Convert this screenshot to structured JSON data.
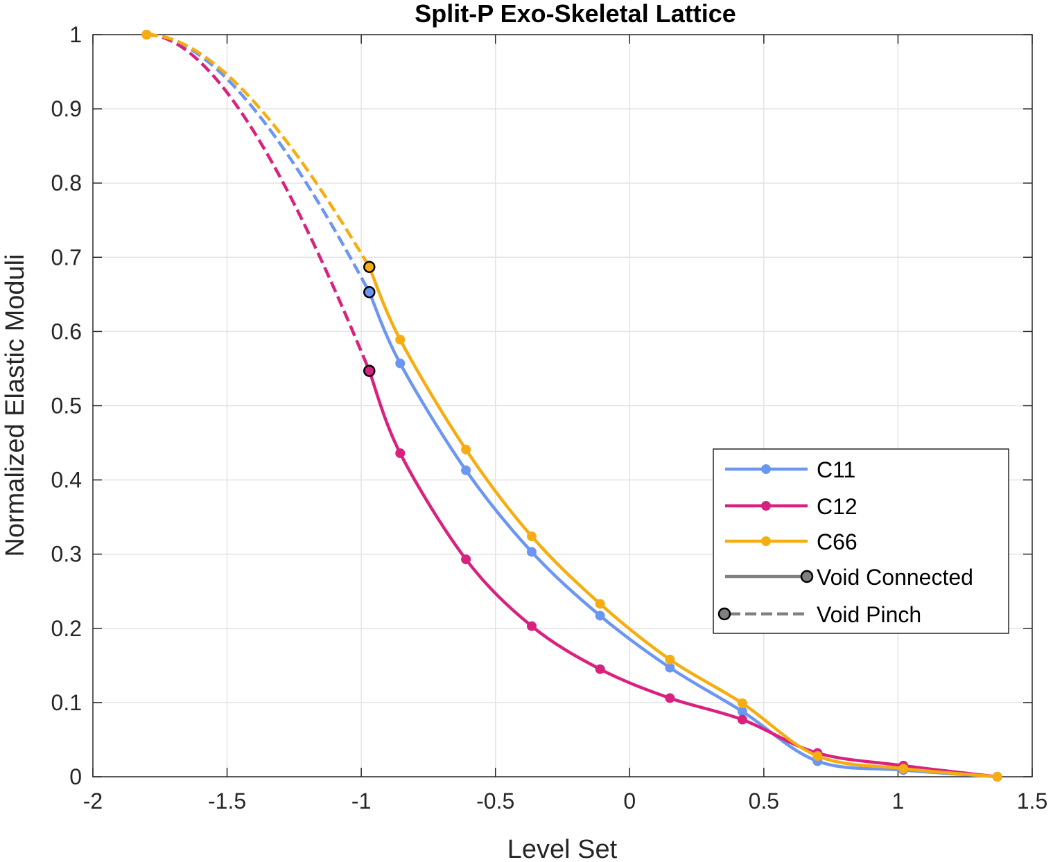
{
  "chart_data": {
    "type": "line",
    "title": "Split-P Exo-Skeletal Lattice",
    "xlabel": "Level Set",
    "ylabel": "Normalized Elastic Moduli",
    "xlim": [
      -2,
      1.5
    ],
    "ylim": [
      0,
      1
    ],
    "xticks": [
      -2,
      -1.5,
      -1,
      -0.5,
      0,
      0.5,
      1,
      1.5
    ],
    "xtick_labels": [
      "-2",
      "-1.5",
      "-1",
      "-0.5",
      "0",
      "0.5",
      "1",
      "1.5"
    ],
    "yticks": [
      0,
      0.1,
      0.2,
      0.3,
      0.4,
      0.5,
      0.6,
      0.7,
      0.8,
      0.9,
      1
    ],
    "ytick_labels": [
      "0",
      "0.1",
      "0.2",
      "0.3",
      "0.4",
      "0.5",
      "0.6",
      "0.7",
      "0.8",
      "0.9",
      "1"
    ],
    "grid": true,
    "legend_position": "right",
    "series": [
      {
        "name": "C11",
        "color": "#6b96f2",
        "pinch": [
          [
            -1.8,
            1.0
          ],
          [
            -0.97,
            0.653
          ]
        ],
        "connected": [
          [
            -0.97,
            0.653
          ],
          [
            -0.855,
            0.557
          ],
          [
            -0.61,
            0.413
          ],
          [
            -0.365,
            0.303
          ],
          [
            -0.11,
            0.217
          ],
          [
            0.15,
            0.147
          ],
          [
            0.42,
            0.088
          ],
          [
            0.7,
            0.021
          ],
          [
            1.02,
            0.009
          ],
          [
            1.37,
            0.0
          ]
        ]
      },
      {
        "name": "C12",
        "color": "#d9217f",
        "pinch": [
          [
            -1.8,
            1.0
          ],
          [
            -0.97,
            0.547
          ]
        ],
        "connected": [
          [
            -0.97,
            0.547
          ],
          [
            -0.855,
            0.436
          ],
          [
            -0.61,
            0.293
          ],
          [
            -0.365,
            0.203
          ],
          [
            -0.11,
            0.145
          ],
          [
            0.15,
            0.106
          ],
          [
            0.42,
            0.077
          ],
          [
            0.7,
            0.032
          ],
          [
            1.02,
            0.015
          ],
          [
            1.37,
            0.0
          ]
        ]
      },
      {
        "name": "C66",
        "color": "#f5ad0f",
        "pinch": [
          [
            -1.8,
            1.0
          ],
          [
            -0.97,
            0.687
          ]
        ],
        "connected": [
          [
            -0.97,
            0.687
          ],
          [
            -0.855,
            0.589
          ],
          [
            -0.61,
            0.441
          ],
          [
            -0.365,
            0.324
          ],
          [
            -0.11,
            0.233
          ],
          [
            0.15,
            0.158
          ],
          [
            0.42,
            0.099
          ],
          [
            0.7,
            0.028
          ],
          [
            1.02,
            0.011
          ],
          [
            1.37,
            0.0
          ]
        ]
      }
    ],
    "legend_entries": [
      "C11",
      "C12",
      "C66",
      "Void Connected",
      "Void Pinch"
    ],
    "legend_style_color": "#808080"
  }
}
